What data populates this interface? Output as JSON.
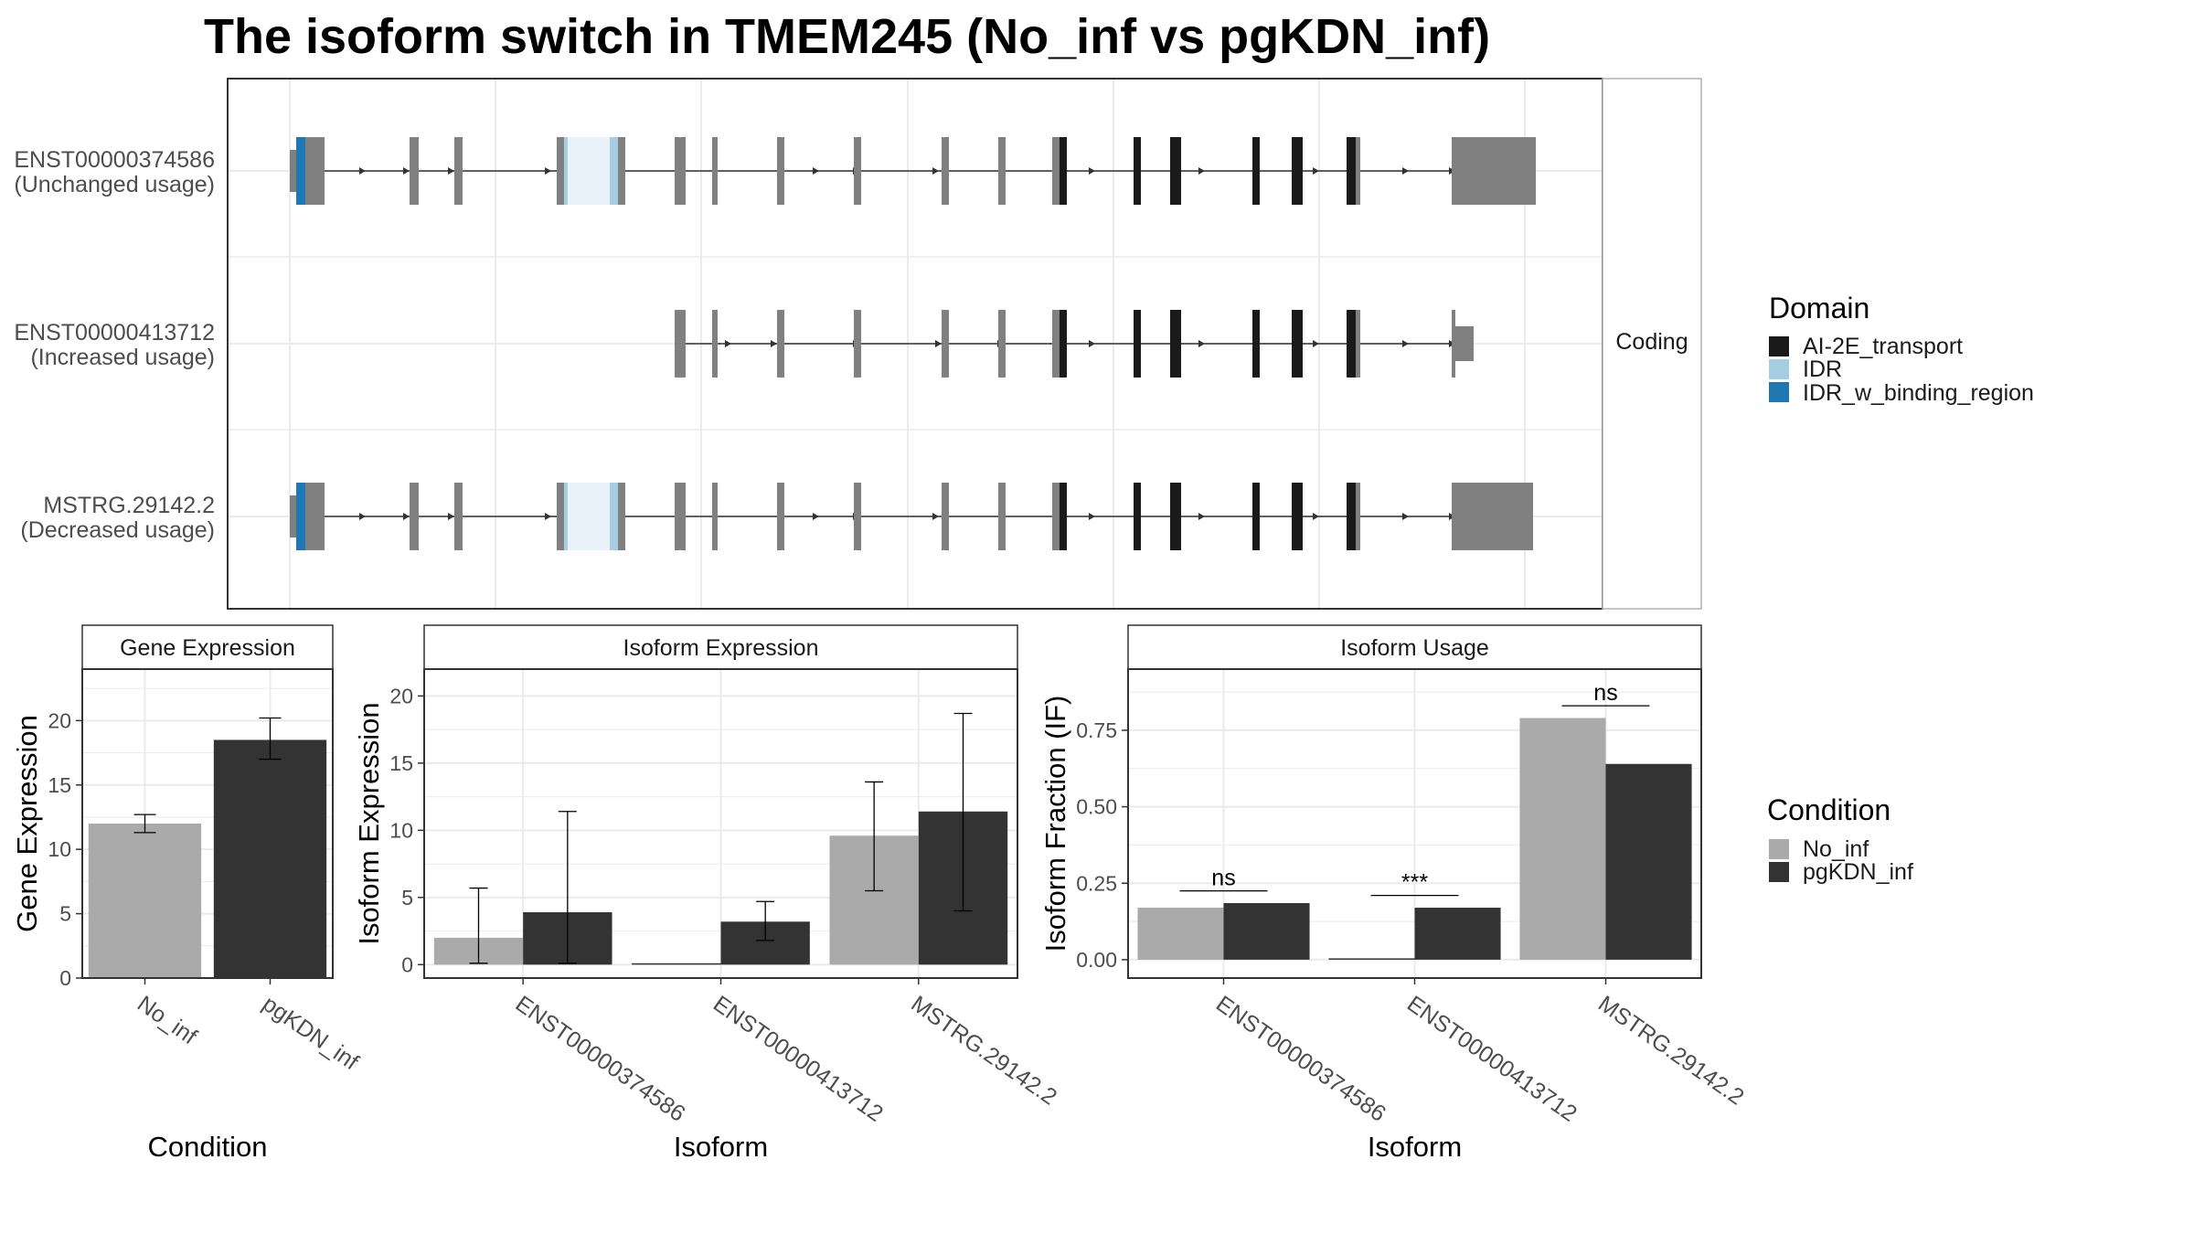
{
  "title": "The isoform switch in TMEM245 (No_inf vs pgKDN_inf)",
  "colors": {
    "no_inf": "#aaaaaa",
    "pgkdn_inf": "#333333",
    "exon": "#808080",
    "ai2e": "#1a1a1a",
    "idr": "#a6cee3",
    "idr_binding": "#1f78b4",
    "grid": "#ebebeb",
    "panel_border": "#333333",
    "strip_fill": "#ffffff"
  },
  "structure": {
    "strip": "Coding",
    "transcripts": [
      {
        "id": "ENST00000374586",
        "usage": "(Unchanged usage)"
      },
      {
        "id": "ENST00000413712",
        "usage": "(Increased usage)"
      },
      {
        "id": "MSTRG.29142.2",
        "usage": "(Decreased usage)"
      }
    ]
  },
  "legend_domain": {
    "title": "Domain",
    "items": [
      {
        "label": "AI-2E_transport",
        "color": "#1a1a1a"
      },
      {
        "label": "IDR",
        "color": "#a6cee3"
      },
      {
        "label": "IDR_w_binding_region",
        "color": "#1f78b4"
      }
    ]
  },
  "legend_condition": {
    "title": "Condition",
    "items": [
      {
        "label": "No_inf",
        "color": "#aaaaaa"
      },
      {
        "label": "pgKDN_inf",
        "color": "#333333"
      }
    ]
  },
  "chart_data": [
    {
      "type": "bar",
      "title": "Gene Expression",
      "xlabel": "Condition",
      "ylabel": "Gene Expression",
      "ylim": [
        0,
        24
      ],
      "yticks": [
        0,
        5,
        10,
        15,
        20
      ],
      "categories": [
        "No_inf",
        "pgKDN_inf"
      ],
      "values": [
        12.0,
        18.5
      ],
      "error_low": [
        11.3,
        17.0
      ],
      "error_high": [
        12.7,
        20.2
      ]
    },
    {
      "type": "bar",
      "title": "Isoform Expression",
      "xlabel": "Isoform",
      "ylabel": "Isoform Expression",
      "ylim": [
        -1,
        22
      ],
      "yticks": [
        0,
        5,
        10,
        15,
        20
      ],
      "categories": [
        "ENST00000374586",
        "ENST00000413712",
        "MSTRG.29142.2"
      ],
      "series": [
        {
          "name": "No_inf",
          "values": [
            2.0,
            0.0,
            9.6
          ],
          "error_low": [
            0.1,
            0.0,
            5.5
          ],
          "error_high": [
            5.7,
            0.0,
            13.6
          ]
        },
        {
          "name": "pgKDN_inf",
          "values": [
            3.9,
            3.2,
            11.4
          ],
          "error_low": [
            0.1,
            1.8,
            4.0
          ],
          "error_high": [
            11.4,
            4.7,
            18.7
          ]
        }
      ]
    },
    {
      "type": "bar",
      "title": "Isoform Usage",
      "xlabel": "Isoform",
      "ylabel": "Isoform Fraction (IF)",
      "ylim": [
        -0.06,
        0.95
      ],
      "yticks": [
        "0.00",
        "0.25",
        "0.50",
        "0.75"
      ],
      "categories": [
        "ENST00000374586",
        "ENST00000413712",
        "MSTRG.29142.2"
      ],
      "series": [
        {
          "name": "No_inf",
          "values": [
            0.17,
            0.0,
            0.79
          ]
        },
        {
          "name": "pgKDN_inf",
          "values": [
            0.185,
            0.17,
            0.64
          ]
        }
      ],
      "significance": [
        {
          "label": "ns",
          "y": 0.225
        },
        {
          "label": "***",
          "y": 0.21
        },
        {
          "label": "ns",
          "y": 0.83
        }
      ]
    }
  ]
}
